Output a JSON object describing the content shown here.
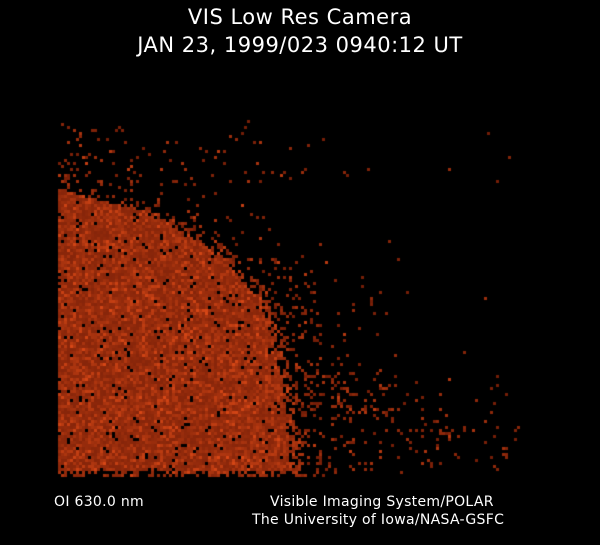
{
  "header": {
    "title": "VIS Low Res Camera",
    "timestamp": "JAN 23, 1999/023 0940:12 UT"
  },
  "footer": {
    "filter": "OI  630.0 nm",
    "credit_line1": "Visible Imaging System/POLAR",
    "credit_line2": "The University of Iowa/NASA-GSFC"
  },
  "image": {
    "subject": "auroral emission image",
    "colors": {
      "background": "#000000",
      "emission_dark": "#5a1400",
      "emission_bright": "#c0541a"
    }
  }
}
